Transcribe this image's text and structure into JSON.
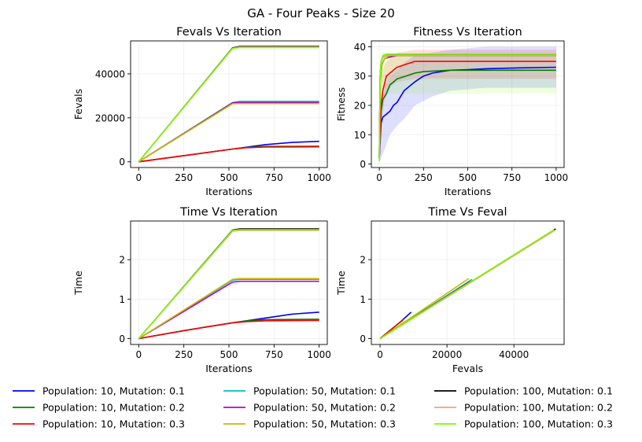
{
  "figure": {
    "suptitle": "GA - Four Peaks - Size 20"
  },
  "colors": {
    "p10_m01": "#0000ff",
    "p10_m02": "#008000",
    "p10_m03": "#ff0000",
    "p50_m01": "#00bfbf",
    "p50_m02": "#bf00bf",
    "p50_m03": "#bfbf00",
    "p100_m01": "#000000",
    "p100_m02": "#e9a67a",
    "p100_m03": "#7cfc00"
  },
  "chart_data": [
    {
      "type": "line",
      "title": "Fevals Vs Iteration",
      "xlabel": "Iterations",
      "ylabel": "Fevals",
      "xlim": [
        -45,
        1045
      ],
      "ylim": [
        -2600,
        55000
      ],
      "xticks": [
        0,
        250,
        500,
        750,
        1000
      ],
      "yticks": [
        0,
        20000,
        40000
      ],
      "grid": true,
      "series": [
        {
          "name": "Population: 10, Mutation: 0.1",
          "color_key": "p10_m01",
          "x": [
            0,
            250,
            520,
            700,
            850,
            1000
          ],
          "y": [
            0,
            2800,
            5800,
            7800,
            8800,
            9300
          ]
        },
        {
          "name": "Population: 10, Mutation: 0.2",
          "color_key": "p10_m02",
          "x": [
            0,
            250,
            520,
            600,
            700,
            1000
          ],
          "y": [
            0,
            2800,
            5800,
            6500,
            7000,
            7100
          ]
        },
        {
          "name": "Population: 10, Mutation: 0.3",
          "color_key": "p10_m03",
          "x": [
            0,
            250,
            520,
            600,
            700,
            1000
          ],
          "y": [
            0,
            2800,
            5800,
            6400,
            6700,
            6800
          ]
        },
        {
          "name": "Population: 50, Mutation: 0.1",
          "color_key": "p50_m01",
          "x": [
            0,
            520,
            560,
            1000
          ],
          "y": [
            0,
            27000,
            27500,
            27500
          ]
        },
        {
          "name": "Population: 50, Mutation: 0.2",
          "color_key": "p50_m02",
          "x": [
            0,
            520,
            560,
            1000
          ],
          "y": [
            0,
            26800,
            27000,
            27000
          ]
        },
        {
          "name": "Population: 50, Mutation: 0.3",
          "color_key": "p50_m03",
          "x": [
            0,
            520,
            560,
            1000
          ],
          "y": [
            0,
            26400,
            26500,
            26500
          ]
        },
        {
          "name": "Population: 100, Mutation: 0.1",
          "color_key": "p100_m01",
          "x": [
            0,
            520,
            560,
            1000
          ],
          "y": [
            0,
            51800,
            52500,
            52500
          ]
        },
        {
          "name": "Population: 100, Mutation: 0.2",
          "color_key": "p100_m02",
          "x": [
            0,
            520,
            560,
            1000
          ],
          "y": [
            0,
            51600,
            52200,
            52200
          ]
        },
        {
          "name": "Population: 100, Mutation: 0.3",
          "color_key": "p100_m03",
          "x": [
            0,
            520,
            560,
            1000
          ],
          "y": [
            0,
            51600,
            52000,
            52000
          ]
        }
      ]
    },
    {
      "type": "line",
      "title": "Fitness Vs Iteration",
      "xlabel": "Iterations",
      "ylabel": "Fitness",
      "xlim": [
        -45,
        1045
      ],
      "ylim": [
        -1.2,
        42
      ],
      "xticks": [
        0,
        250,
        500,
        750,
        1000
      ],
      "yticks": [
        0,
        10,
        20,
        30,
        40
      ],
      "grid": true,
      "bands": [
        {
          "color_key": "p10_m01",
          "x": [
            0,
            10,
            30,
            60,
            100,
            150,
            200,
            300,
            400,
            600,
            1000
          ],
          "lo": [
            0,
            2,
            5,
            10,
            13,
            16,
            20,
            23,
            25,
            26,
            26
          ],
          "hi": [
            4,
            20,
            26,
            30,
            32,
            35,
            37,
            38,
            39,
            40,
            40
          ]
        },
        {
          "color_key": "p10_m03",
          "x": [
            0,
            10,
            30,
            60,
            100,
            200,
            400,
            1000
          ],
          "lo": [
            0,
            12,
            22,
            26,
            28,
            29,
            29,
            29
          ],
          "hi": [
            5,
            30,
            34,
            36,
            38,
            39,
            39,
            39
          ]
        },
        {
          "color_key": "p100_m03",
          "x": [
            0,
            10,
            20,
            40,
            100,
            1000
          ],
          "lo": [
            0,
            20,
            24,
            24,
            24,
            24
          ],
          "hi": [
            5,
            38,
            38,
            38,
            38,
            38
          ]
        }
      ],
      "series": [
        {
          "name": "Population: 10, Mutation: 0.1",
          "color_key": "p10_m01",
          "x": [
            0,
            10,
            20,
            40,
            60,
            80,
            100,
            120,
            140,
            160,
            180,
            200,
            250,
            300,
            350,
            400,
            500,
            600,
            800,
            1000
          ],
          "y": [
            2,
            14,
            16,
            17,
            18,
            20,
            21,
            23,
            25,
            26,
            27,
            28,
            30,
            31,
            31.5,
            32,
            32.2,
            32.5,
            32.8,
            33
          ]
        },
        {
          "name": "Population: 10, Mutation: 0.2",
          "color_key": "p10_m02",
          "x": [
            0,
            10,
            20,
            40,
            60,
            80,
            100,
            150,
            200,
            250,
            300,
            400,
            500,
            700,
            1000
          ],
          "y": [
            2,
            18,
            22,
            24,
            27,
            28,
            29,
            30,
            31,
            31.5,
            31.7,
            32,
            32,
            32,
            32
          ]
        },
        {
          "name": "Population: 10, Mutation: 0.3",
          "color_key": "p10_m03",
          "x": [
            0,
            10,
            20,
            40,
            60,
            80,
            100,
            150,
            200,
            300,
            500,
            700,
            1000
          ],
          "y": [
            2,
            20,
            25,
            30,
            31,
            32,
            33,
            34,
            35,
            35,
            35,
            35,
            35
          ]
        },
        {
          "name": "Population: 50, Mutation: 0.1",
          "color_key": "p50_m01",
          "x": [
            0,
            5,
            15,
            30,
            60,
            100,
            1000
          ],
          "y": [
            2,
            28,
            34,
            36,
            36.5,
            37,
            37
          ]
        },
        {
          "name": "Population: 50, Mutation: 0.2",
          "color_key": "p50_m02",
          "x": [
            0,
            5,
            15,
            30,
            60,
            100,
            1000
          ],
          "y": [
            2,
            28,
            34,
            36,
            36.5,
            37,
            37
          ]
        },
        {
          "name": "Population: 50, Mutation: 0.3",
          "color_key": "p50_m03",
          "x": [
            0,
            5,
            15,
            30,
            60,
            100,
            1000
          ],
          "y": [
            2,
            27,
            34,
            36,
            37,
            37,
            37
          ]
        },
        {
          "name": "Population: 100, Mutation: 0.1",
          "color_key": "p100_m01",
          "x": [
            0,
            5,
            10,
            20,
            40,
            1000
          ],
          "y": [
            2,
            30,
            35,
            36.5,
            37,
            37
          ]
        },
        {
          "name": "Population: 100, Mutation: 0.2",
          "color_key": "p100_m02",
          "x": [
            0,
            5,
            10,
            20,
            40,
            1000
          ],
          "y": [
            2,
            30,
            35,
            36.5,
            37,
            37
          ]
        },
        {
          "name": "Population: 100, Mutation: 0.3",
          "color_key": "p100_m03",
          "x": [
            0,
            5,
            10,
            20,
            40,
            1000
          ],
          "y": [
            1,
            30,
            35,
            37,
            37.5,
            37.5
          ]
        }
      ]
    },
    {
      "type": "line",
      "title": "Time Vs Iteration",
      "xlabel": "Iterations",
      "ylabel": "Time",
      "xlim": [
        -45,
        1045
      ],
      "ylim": [
        -0.15,
        2.98
      ],
      "xticks": [
        0,
        250,
        500,
        750,
        1000
      ],
      "yticks": [
        0,
        1,
        2
      ],
      "grid": true,
      "series": [
        {
          "name": "Population: 10, Mutation: 0.1",
          "color_key": "p10_m01",
          "x": [
            0,
            250,
            520,
            700,
            850,
            1000
          ],
          "y": [
            0,
            0.2,
            0.4,
            0.52,
            0.62,
            0.67
          ]
        },
        {
          "name": "Population: 10, Mutation: 0.2",
          "color_key": "p10_m02",
          "x": [
            0,
            250,
            520,
            600,
            700,
            1000
          ],
          "y": [
            0,
            0.2,
            0.4,
            0.45,
            0.48,
            0.49
          ]
        },
        {
          "name": "Population: 10, Mutation: 0.3",
          "color_key": "p10_m03",
          "x": [
            0,
            250,
            520,
            600,
            700,
            1000
          ],
          "y": [
            0,
            0.2,
            0.4,
            0.43,
            0.45,
            0.46
          ]
        },
        {
          "name": "Population: 50, Mutation: 0.1",
          "color_key": "p50_m01",
          "x": [
            0,
            520,
            560,
            1000
          ],
          "y": [
            0,
            1.48,
            1.5,
            1.5
          ]
        },
        {
          "name": "Population: 50, Mutation: 0.2",
          "color_key": "p50_m02",
          "x": [
            0,
            520,
            560,
            1000
          ],
          "y": [
            0,
            1.43,
            1.45,
            1.45
          ]
        },
        {
          "name": "Population: 50, Mutation: 0.3",
          "color_key": "p50_m03",
          "x": [
            0,
            520,
            560,
            1000
          ],
          "y": [
            0,
            1.5,
            1.52,
            1.52
          ]
        },
        {
          "name": "Population: 100, Mutation: 0.1",
          "color_key": "p100_m01",
          "x": [
            0,
            520,
            560,
            1000
          ],
          "y": [
            0,
            2.75,
            2.78,
            2.78
          ]
        },
        {
          "name": "Population: 100, Mutation: 0.2",
          "color_key": "p100_m02",
          "x": [
            0,
            520,
            560,
            1000
          ],
          "y": [
            0,
            2.72,
            2.74,
            2.74
          ]
        },
        {
          "name": "Population: 100, Mutation: 0.3",
          "color_key": "p100_m03",
          "x": [
            0,
            520,
            560,
            1000
          ],
          "y": [
            0,
            2.74,
            2.76,
            2.76
          ]
        }
      ]
    },
    {
      "type": "line",
      "title": "Time Vs Feval",
      "xlabel": "Fevals",
      "ylabel": "Time",
      "xlim": [
        -2600,
        55000
      ],
      "ylim": [
        -0.15,
        2.98
      ],
      "xticks": [
        0,
        20000,
        40000
      ],
      "yticks": [
        0,
        1,
        2
      ],
      "grid": true,
      "series": [
        {
          "name": "Population: 10, Mutation: 0.1",
          "color_key": "p10_m01",
          "x": [
            0,
            5800,
            9300
          ],
          "y": [
            0,
            0.4,
            0.67
          ]
        },
        {
          "name": "Population: 10, Mutation: 0.2",
          "color_key": "p10_m02",
          "x": [
            0,
            5800,
            7100
          ],
          "y": [
            0,
            0.4,
            0.49
          ]
        },
        {
          "name": "Population: 10, Mutation: 0.3",
          "color_key": "p10_m03",
          "x": [
            0,
            5800,
            6800
          ],
          "y": [
            0,
            0.4,
            0.46
          ]
        },
        {
          "name": "Population: 50, Mutation: 0.1",
          "color_key": "p50_m01",
          "x": [
            0,
            27500
          ],
          "y": [
            0,
            1.5
          ]
        },
        {
          "name": "Population: 50, Mutation: 0.2",
          "color_key": "p50_m02",
          "x": [
            0,
            27000
          ],
          "y": [
            0,
            1.45
          ]
        },
        {
          "name": "Population: 50, Mutation: 0.3",
          "color_key": "p50_m03",
          "x": [
            0,
            26500
          ],
          "y": [
            0,
            1.52
          ]
        },
        {
          "name": "Population: 100, Mutation: 0.1",
          "color_key": "p100_m01",
          "x": [
            0,
            52500
          ],
          "y": [
            0,
            2.78
          ]
        },
        {
          "name": "Population: 100, Mutation: 0.2",
          "color_key": "p100_m02",
          "x": [
            0,
            52200
          ],
          "y": [
            0,
            2.74
          ]
        },
        {
          "name": "Population: 100, Mutation: 0.3",
          "color_key": "p100_m03",
          "x": [
            0,
            52000
          ],
          "y": [
            0,
            2.76
          ]
        }
      ]
    }
  ],
  "legend": {
    "placement": "bottom",
    "entries": [
      {
        "label": "Population: 10, Mutation: 0.1",
        "color_key": "p10_m01"
      },
      {
        "label": "Population: 10, Mutation: 0.2",
        "color_key": "p10_m02"
      },
      {
        "label": "Population: 10, Mutation: 0.3",
        "color_key": "p10_m03"
      },
      {
        "label": "Population: 50, Mutation: 0.1",
        "color_key": "p50_m01"
      },
      {
        "label": "Population: 50, Mutation: 0.2",
        "color_key": "p50_m02"
      },
      {
        "label": "Population: 50, Mutation: 0.3",
        "color_key": "p50_m03"
      },
      {
        "label": "Population: 100, Mutation: 0.1",
        "color_key": "p100_m01"
      },
      {
        "label": "Population: 100, Mutation: 0.2",
        "color_key": "p100_m02"
      },
      {
        "label": "Population: 100, Mutation: 0.3",
        "color_key": "p100_m03"
      }
    ]
  }
}
